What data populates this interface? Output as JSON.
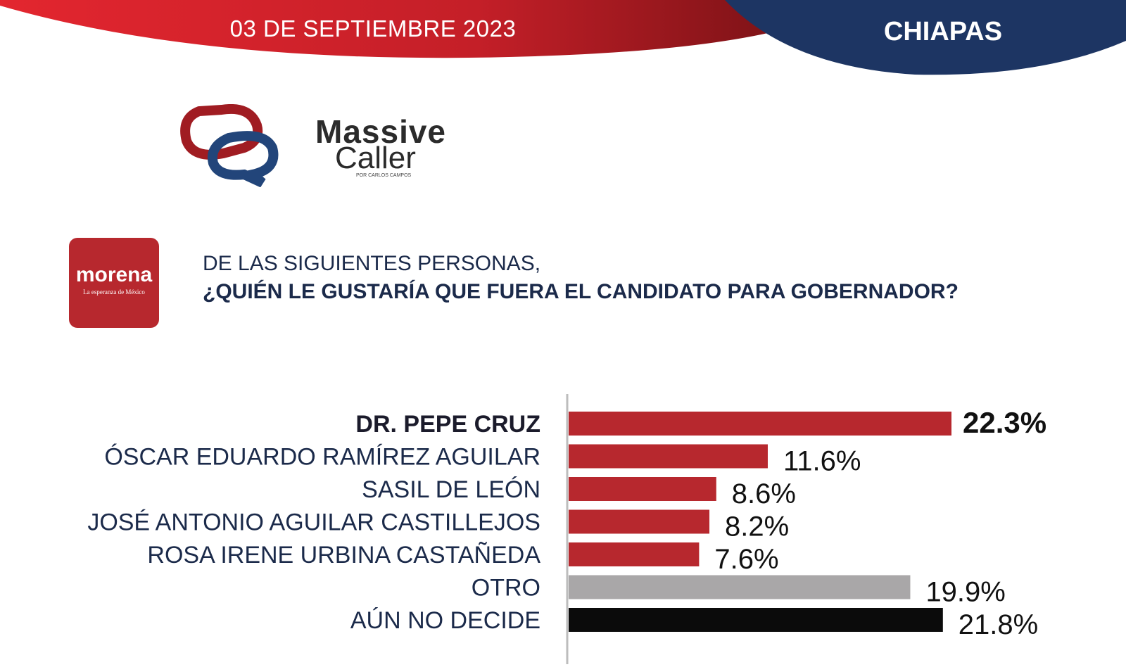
{
  "header": {
    "date": "03 DE SEPTIEMBRE 2023",
    "state": "CHIAPAS",
    "colors": {
      "red": "#c8232b",
      "navy": "#1d3563"
    }
  },
  "brand": {
    "icon": "massive-caller-logo-icon",
    "line1": "Massive",
    "line2": "Caller",
    "byline": "POR CARLOS CAMPOS"
  },
  "party": {
    "name": "morena",
    "slogan": "La esperanza de México",
    "color": "#b7282e"
  },
  "question": {
    "line1": "DE LAS SIGUIENTES PERSONAS,",
    "line2": "¿QUIÉN LE GUSTARÍA QUE FUERA EL CANDIDATO PARA GOBERNADOR?"
  },
  "chart_data": {
    "type": "bar",
    "orientation": "horizontal",
    "categories": [
      "DR. PEPE CRUZ",
      "ÓSCAR EDUARDO RAMÍREZ AGUILAR",
      "SASIL DE LEÓN",
      "JOSÉ ANTONIO AGUILAR CASTILLEJOS",
      "ROSA IRENE URBINA CASTAÑEDA",
      "OTRO",
      "AÚN NO DECIDE"
    ],
    "values": [
      22.3,
      11.6,
      8.6,
      8.2,
      7.6,
      19.9,
      21.8
    ],
    "labels": [
      "22.3%",
      "11.6%",
      "8.6%",
      "8.2%",
      "7.6%",
      "19.9%",
      "21.8%"
    ],
    "bar_colors": [
      "#b7282e",
      "#b7282e",
      "#b7282e",
      "#b7282e",
      "#b7282e",
      "#a9a7a8",
      "#0b0b0b"
    ],
    "highlight_index": 0,
    "unit": "%",
    "xlim": [
      0,
      25
    ],
    "grid": false,
    "title": "",
    "xlabel": "",
    "ylabel": ""
  }
}
